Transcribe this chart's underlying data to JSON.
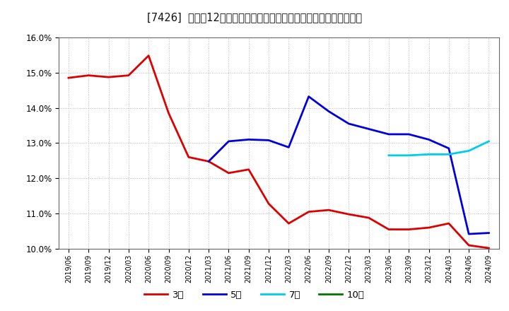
{
  "title": "[7426]  売上高12か月移動合計の対前年同期増減率の標準偏差の推移",
  "ylim": [
    0.1,
    0.16
  ],
  "yticks": [
    0.1,
    0.11,
    0.12,
    0.13,
    0.14,
    0.15,
    0.16
  ],
  "background_color": "#ffffff",
  "plot_bg_color": "#ffffff",
  "grid_color": "#aaaaaa",
  "series": {
    "3year": {
      "color": "#dd0000",
      "label": "3年",
      "data": [
        [
          "2019/06",
          0.1485
        ],
        [
          "2019/09",
          0.1492
        ],
        [
          "2019/12",
          0.1487
        ],
        [
          "2020/03",
          0.1492
        ],
        [
          "2020/06",
          0.1548
        ],
        [
          "2020/09",
          0.1385
        ],
        [
          "2020/12",
          0.126
        ],
        [
          "2021/03",
          0.1248
        ],
        [
          "2021/06",
          0.1215
        ],
        [
          "2021/09",
          0.1225
        ],
        [
          "2021/12",
          0.1128
        ],
        [
          "2022/03",
          0.1072
        ],
        [
          "2022/06",
          0.1105
        ],
        [
          "2022/09",
          0.111
        ],
        [
          "2022/12",
          0.1098
        ],
        [
          "2023/03",
          0.1088
        ],
        [
          "2023/06",
          0.1055
        ],
        [
          "2023/09",
          0.1055
        ],
        [
          "2023/12",
          0.106
        ],
        [
          "2024/03",
          0.1072
        ],
        [
          "2024/06",
          0.101
        ],
        [
          "2024/09",
          0.1002
        ]
      ]
    },
    "5year": {
      "color": "#0000dd",
      "label": "5年",
      "data": [
        [
          "2021/03",
          0.1248
        ],
        [
          "2021/06",
          0.1305
        ],
        [
          "2021/09",
          0.131
        ],
        [
          "2021/12",
          0.1308
        ],
        [
          "2022/03",
          0.1288
        ],
        [
          "2022/06",
          0.1432
        ],
        [
          "2022/09",
          0.139
        ],
        [
          "2022/12",
          0.1355
        ],
        [
          "2023/03",
          0.134
        ],
        [
          "2023/06",
          0.1325
        ],
        [
          "2023/09",
          0.1325
        ],
        [
          "2023/12",
          0.131
        ],
        [
          "2024/03",
          0.1285
        ],
        [
          "2024/06",
          0.1042
        ],
        [
          "2024/09",
          0.1045
        ]
      ]
    },
    "7year": {
      "color": "#00ccee",
      "label": "7年",
      "data": [
        [
          "2023/06",
          0.1265
        ],
        [
          "2023/09",
          0.1265
        ],
        [
          "2023/12",
          0.1268
        ],
        [
          "2024/03",
          0.1268
        ],
        [
          "2024/06",
          0.1278
        ],
        [
          "2024/09",
          0.1305
        ]
      ]
    },
    "10year": {
      "color": "#007700",
      "label": "10年",
      "data": []
    }
  },
  "xtick_labels": [
    "2019/06",
    "2019/09",
    "2019/12",
    "2020/03",
    "2020/06",
    "2020/09",
    "2020/12",
    "2021/03",
    "2021/06",
    "2021/09",
    "2021/12",
    "2022/03",
    "2022/06",
    "2022/09",
    "2022/12",
    "2023/03",
    "2023/06",
    "2023/09",
    "2023/12",
    "2024/03",
    "2024/06",
    "2024/09"
  ]
}
